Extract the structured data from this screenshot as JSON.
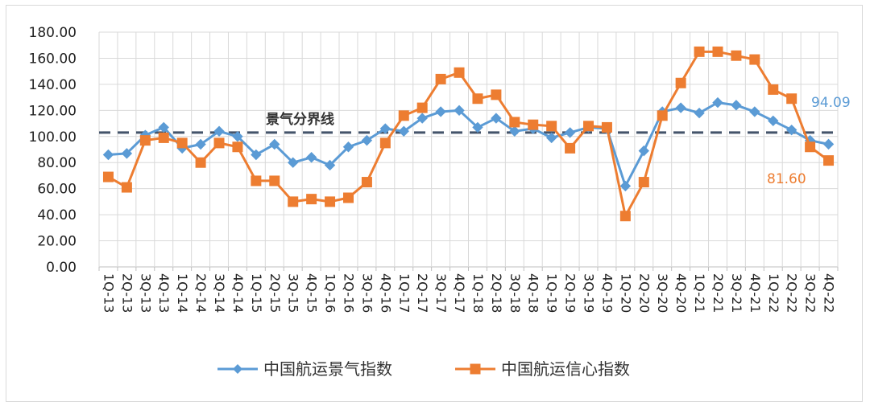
{
  "chart_data": {
    "type": "line",
    "title": "",
    "xlabel": "",
    "ylabel": "",
    "ylim": [
      0,
      180
    ],
    "yticks": [
      "0.00",
      "20.00",
      "40.00",
      "60.00",
      "80.00",
      "100.00",
      "120.00",
      "140.00",
      "160.00",
      "180.00"
    ],
    "grid": true,
    "legend_position": "bottom",
    "categories": [
      "1Q-13",
      "2Q-13",
      "3Q-13",
      "4Q-13",
      "1Q-14",
      "2Q-14",
      "3Q-14",
      "4Q-14",
      "1Q-15",
      "2Q-15",
      "3Q-15",
      "4Q-15",
      "1Q-16",
      "2Q-16",
      "3Q-16",
      "4Q-16",
      "1Q-17",
      "2Q-17",
      "3Q-17",
      "4Q-17",
      "1Q-18",
      "2Q-18",
      "3Q-18",
      "4Q-18",
      "1Q-19",
      "2Q-19",
      "3Q-19",
      "4Q-19",
      "1Q-20",
      "2Q-20",
      "3Q-20",
      "4Q-20",
      "1Q-21",
      "2Q-21",
      "3Q-21",
      "4Q-21",
      "1Q-22",
      "2Q-22",
      "3Q-22",
      "4Q-22"
    ],
    "x_label_categories": [
      "1Q-13",
      "2Q-13",
      "3Q-13",
      "4Q-13",
      "1Q-14",
      "2Q-14",
      "3Q-14",
      "4Q-14",
      "1Q-15",
      "2Q-15",
      "3Q-15",
      "4Q-15",
      "1Q-16",
      "2Q-16",
      "3Q-16",
      "4Q-16",
      "1Q-17",
      "2Q-17",
      "3Q-17",
      "4Q-17",
      "1Q-18",
      "2Q-18",
      "3Q-18",
      "4Q-18",
      "1Q-19",
      "2Q-19",
      "3Q-19",
      "4Q-19",
      "1Q-20",
      "2Q-20",
      "3Q-20",
      "4Q-20",
      "1Q-21",
      "2Q-21",
      "3Q-21",
      "4Q-21",
      "1Q-22",
      "2Q-22",
      "3Q-22",
      "4Q-22"
    ],
    "series": [
      {
        "name": "中国航运景气指数",
        "color": "#5b9bd5",
        "marker": "diamond",
        "values": [
          86,
          87,
          101,
          107,
          91,
          94,
          104,
          100,
          86,
          94,
          80,
          84,
          78,
          92,
          97,
          106,
          104,
          114,
          119,
          120,
          107,
          114,
          104,
          106,
          99,
          103,
          107,
          106,
          62,
          89,
          119,
          122,
          118,
          126,
          124,
          119,
          112,
          105,
          97,
          94.09
        ]
      },
      {
        "name": "中国航运信心指数",
        "color": "#ed7d31",
        "marker": "square",
        "values": [
          69,
          61,
          97,
          99,
          95,
          80,
          95,
          92,
          66,
          66,
          50,
          52,
          50,
          53,
          65,
          95,
          116,
          122,
          144,
          149,
          129,
          132,
          111,
          109,
          108,
          91,
          108,
          107,
          39,
          65,
          116,
          141,
          165,
          165,
          162,
          159,
          136,
          129,
          92,
          81.6
        ]
      }
    ],
    "reference_line": {
      "value": 103,
      "label": "景气分界线",
      "color": "#44546a"
    },
    "annotations": [
      {
        "text": "94.09",
        "series": "中国航运景气指数",
        "color": "#5b9bd5"
      },
      {
        "text": "81.60",
        "series": "中国航运信心指数",
        "color": "#ed7d31"
      }
    ]
  }
}
